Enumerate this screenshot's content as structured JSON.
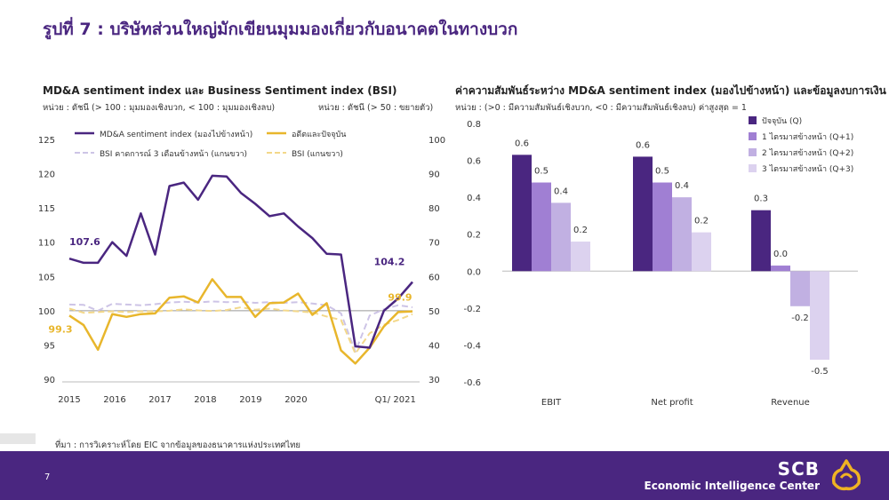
{
  "title": "รูปที่ 7 : บริษัทส่วนใหญ่มักเขียนมุมมองเกี่ยวกับอนาคตในทางบวก",
  "left_chart_heading": "MD&A sentiment index และ Business Sentiment index (BSI)",
  "left_unit_left": "หน่วย : ดัชนี (> 100 : มุมมองเชิงบวก, < 100 : มุมมองเชิงลบ)",
  "left_unit_right": "หน่วย : ดัชนี (> 50 : ขยายตัว)",
  "right_chart_heading": "ค่าความสัมพันธ์ระหว่าง MD&A sentiment index (มองไปข้างหน้า) และข้อมูลงบการเงิน",
  "right_unit": "หน่วย : (>0 : มีความสัมพันธ์เชิงบวก, <0 : มีความสัมพันธ์เชิงลบ) ค่าสูงสุด = 1",
  "source": "ที่มา : การวิเคราะห์โดย EIC จากข้อมูลของธนาคารแห่งประเทศไทย",
  "page_number": "7",
  "brand": "SCB",
  "brand_sub": "Economic Intelligence Center",
  "colors": {
    "purple": "#4a2680",
    "gold": "#e8b62c",
    "lavender": "#cdc4e6",
    "light_gold": "#f3d88a"
  },
  "chart_data": [
    {
      "type": "line",
      "title": "MD&A sentiment index และ Business Sentiment index (BSI)",
      "x_tick_labels": [
        "2015",
        "2016",
        "2017",
        "2018",
        "2019",
        "2020",
        "Q1/ 2021"
      ],
      "x": [
        0,
        1,
        2,
        3,
        4,
        5,
        6,
        7,
        8,
        9,
        10,
        11,
        12,
        13,
        14,
        15,
        16,
        17,
        18,
        19,
        20,
        21,
        22,
        23,
        24
      ],
      "ylim_left": [
        90,
        125
      ],
      "yticks_left": [
        90,
        95,
        100,
        105,
        110,
        115,
        120,
        125
      ],
      "ylim_right": [
        30,
        100
      ],
      "yticks_right": [
        30,
        40,
        50,
        60,
        70,
        80,
        90,
        100
      ],
      "series": [
        {
          "name": "MD&A sentiment index (มองไปข้างหน้า)",
          "axis": "left",
          "color": "#4a2680",
          "style": "solid",
          "width": 2.5,
          "values": [
            107.6,
            107.0,
            107.0,
            110.0,
            108.0,
            114.2,
            108.2,
            118.2,
            118.7,
            116.2,
            119.7,
            119.6,
            117.2,
            115.6,
            113.8,
            114.2,
            112.3,
            110.6,
            108.3,
            108.2,
            94.8,
            94.6,
            100.0,
            101.8,
            104.2
          ]
        },
        {
          "name": "อดีตและปัจจุบัน",
          "axis": "left",
          "color": "#e8b62c",
          "style": "solid",
          "width": 2.5,
          "values": [
            99.3,
            97.9,
            94.3,
            99.5,
            99.1,
            99.5,
            99.6,
            101.9,
            102.1,
            101.2,
            104.6,
            102.0,
            102.0,
            99.1,
            101.1,
            101.2,
            102.5,
            99.4,
            101.1,
            94.2,
            92.3,
            94.6,
            97.7,
            99.8,
            99.9
          ]
        },
        {
          "name": "BSI คาดการณ์ 3 เดือนข้างหน้า (แกนขวา)",
          "axis": "right",
          "color": "#cdc4e6",
          "style": "dashed",
          "width": 2,
          "values": [
            51.8,
            51.7,
            50.0,
            52.0,
            51.8,
            51.6,
            51.9,
            52.4,
            52.6,
            52.4,
            52.7,
            52.5,
            52.6,
            52.3,
            52.5,
            52.3,
            52.5,
            52.1,
            51.6,
            49.2,
            38.0,
            48.6,
            50.4,
            51.6,
            51.0
          ]
        },
        {
          "name": "BSI (แกนขวา)",
          "axis": "right",
          "color": "#f3d88a",
          "style": "dashed",
          "width": 2,
          "values": [
            50.6,
            49.4,
            49.6,
            49.8,
            49.6,
            49.8,
            49.8,
            50.0,
            50.4,
            50.1,
            49.9,
            50.2,
            51.0,
            50.3,
            50.6,
            50.1,
            49.8,
            49.5,
            48.3,
            47.3,
            37.5,
            43.4,
            45.9,
            47.3,
            49.0
          ]
        }
      ],
      "annotations": [
        {
          "text": "107.6",
          "series": 0,
          "index": 0,
          "color": "#4a2680"
        },
        {
          "text": "104.2",
          "series": 0,
          "index": 24,
          "color": "#4a2680"
        },
        {
          "text": "99.3",
          "series": 1,
          "index": 0,
          "color": "#e8b62c"
        },
        {
          "text": "99.9",
          "series": 1,
          "index": 24,
          "color": "#e8b62c"
        }
      ],
      "reference_line": 100
    },
    {
      "type": "bar",
      "title": "ค่าความสัมพันธ์ระหว่าง MD&A sentiment index (มองไปข้างหน้า) และข้อมูลงบการเงิน",
      "categories": [
        "EBIT",
        "Net profit",
        "Revenue"
      ],
      "ylim": [
        -0.6,
        0.8
      ],
      "yticks": [
        "0.8",
        "0.6",
        "0.4",
        "0.2",
        "0.0",
        "-0.2",
        "-0.4",
        "-0.6"
      ],
      "ytick_values": [
        0.8,
        0.6,
        0.4,
        0.2,
        0.0,
        -0.2,
        -0.4,
        -0.6
      ],
      "series": [
        {
          "name": "ปัจจุบัน (Q)",
          "color": "#4a2680",
          "values": [
            0.63,
            0.62,
            0.33
          ],
          "labels": [
            "0.6",
            "0.6",
            "0.3"
          ]
        },
        {
          "name": "1 ไตรมาสข้างหน้า (Q+1)",
          "color": "#a07fd3",
          "values": [
            0.48,
            0.48,
            0.03
          ],
          "labels": [
            "0.5",
            "0.5",
            "0.0"
          ]
        },
        {
          "name": "2 ไตรมาสข้างหน้า (Q+2)",
          "color": "#c1b0e2",
          "values": [
            0.37,
            0.4,
            -0.19
          ],
          "labels": [
            "0.4",
            "0.4",
            "-0.2"
          ]
        },
        {
          "name": "3 ไตรมาสข้างหน้า (Q+3)",
          "color": "#dcd2ef",
          "values": [
            0.16,
            0.21,
            -0.48
          ],
          "labels": [
            "0.2",
            "0.2",
            "-0.5"
          ]
        }
      ],
      "legend_position": "top-right"
    }
  ]
}
